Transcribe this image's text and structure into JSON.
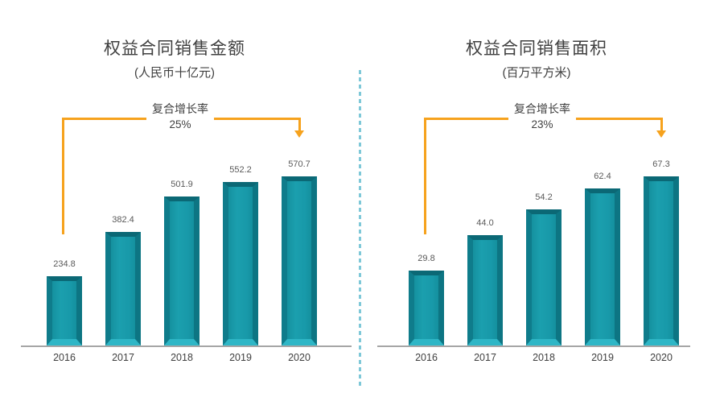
{
  "page": {
    "background": "#ffffff"
  },
  "chart_data": [
    {
      "type": "bar",
      "title": "权益合同销售金额",
      "subtitle": "(人民币十亿元)",
      "cagr": {
        "label": "复合增长率",
        "value": "25%"
      },
      "categories": [
        "2016",
        "2017",
        "2018",
        "2019",
        "2020"
      ],
      "values": [
        234.8,
        382.4,
        501.9,
        552.2,
        570.7
      ],
      "value_labels": [
        "234.8",
        "382.4",
        "501.9",
        "552.2",
        "570.7"
      ],
      "ylim": [
        0,
        600
      ],
      "grid": false,
      "legend": false,
      "annotation_shape": "bracket-with-down-arrow"
    },
    {
      "type": "bar",
      "title": "权益合同销售面积",
      "subtitle": "(百万平方米)",
      "cagr": {
        "label": "复合增长率",
        "value": "23%"
      },
      "categories": [
        "2016",
        "2017",
        "2018",
        "2019",
        "2020"
      ],
      "values": [
        29.8,
        44.0,
        54.2,
        62.4,
        67.3
      ],
      "value_labels": [
        "29.8",
        "44.0",
        "54.2",
        "62.4",
        "67.3"
      ],
      "ylim": [
        0,
        70
      ],
      "grid": false,
      "legend": false,
      "annotation_shape": "bracket-with-down-arrow"
    }
  ],
  "colors": {
    "bar_fill": "#1899a9",
    "bar_bevel_dark": "#0b6875",
    "bar_bevel_light": "#2eb6c6",
    "accent_orange": "#f6a21d",
    "divider_dash": "#7ec8d8",
    "axis_line": "#a6a6a6",
    "title_text": "#3f3f3f",
    "value_text": "#595959"
  }
}
